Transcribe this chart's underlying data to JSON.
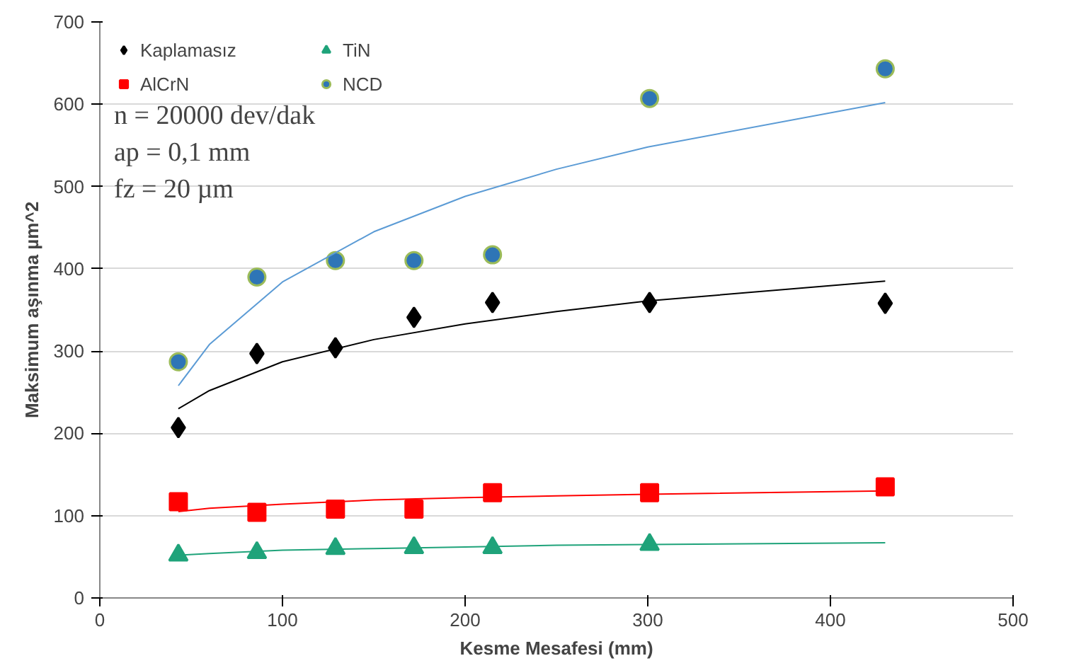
{
  "chart_data": {
    "type": "scatter",
    "xlabel": "Kesme Mesafesi (mm)",
    "ylabel": "Maksimum aşınma µm^2",
    "x": [
      43,
      86,
      129,
      172,
      215,
      301,
      430
    ],
    "series": [
      {
        "name": "Kaplamasız",
        "color": "#000000",
        "marker": "diamond",
        "values": [
          207,
          297,
          304,
          341,
          359,
          359,
          358
        ]
      },
      {
        "name": "AlCrN",
        "color": "#ff0000",
        "marker": "square",
        "values": [
          117,
          104,
          108,
          108,
          128,
          128,
          135
        ]
      },
      {
        "name": "TiN",
        "color": "#1fa37a",
        "marker": "triangle",
        "values": [
          52,
          55,
          60,
          61,
          61,
          65,
          null
        ]
      },
      {
        "name": "NCD",
        "color": "#2e75b6",
        "marker": "circle",
        "values": [
          287,
          390,
          410,
          410,
          417,
          607,
          643
        ]
      },
      {
        "type": "line",
        "color": "#000000",
        "x": [
          43,
          60,
          100,
          150,
          200,
          250,
          300,
          430
        ],
        "values": [
          230,
          252,
          287,
          314,
          333,
          348,
          361,
          385
        ]
      },
      {
        "type": "line",
        "color": "#ff0000",
        "x": [
          43,
          60,
          100,
          150,
          200,
          250,
          300,
          430
        ],
        "values": [
          105,
          109,
          114,
          119,
          122,
          124,
          126,
          130
        ]
      },
      {
        "type": "line",
        "color": "#1fa37a",
        "x": [
          43,
          60,
          100,
          150,
          200,
          250,
          300,
          430
        ],
        "values": [
          52,
          54,
          58,
          60,
          62,
          64,
          65,
          67
        ]
      },
      {
        "type": "line",
        "color": "#5b9bd5",
        "x": [
          43,
          60,
          100,
          150,
          200,
          250,
          300,
          430
        ],
        "values": [
          258,
          308,
          384,
          445,
          488,
          521,
          548,
          602
        ]
      }
    ],
    "xlim": [
      0,
      500
    ],
    "xticks": [
      0,
      100,
      200,
      300,
      400,
      500
    ],
    "ylim": [
      0,
      700
    ],
    "yticks": [
      0,
      100,
      200,
      300,
      400,
      500,
      600,
      700
    ],
    "grid": "y",
    "legend": "top left",
    "annotations": [
      "n = 20000 dev/dak",
      "ap = 0,1 mm",
      "fz = 20 µm"
    ]
  }
}
